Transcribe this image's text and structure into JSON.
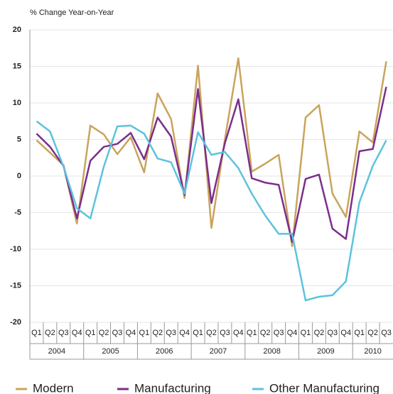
{
  "chart_data": {
    "type": "line",
    "y_label": "% Change Year-on-Year",
    "groups": [
      {
        "name": "2004",
        "categories": [
          "Q1",
          "Q2",
          "Q3",
          "Q4"
        ]
      },
      {
        "name": "2005",
        "categories": [
          "Q1",
          "Q2",
          "Q3",
          "Q4"
        ]
      },
      {
        "name": "2006",
        "categories": [
          "Q1",
          "Q2",
          "Q3",
          "Q4"
        ]
      },
      {
        "name": "2007",
        "categories": [
          "Q1",
          "Q2",
          "Q3",
          "Q4"
        ]
      },
      {
        "name": "2008",
        "categories": [
          "Q1",
          "Q2",
          "Q3",
          "Q4"
        ]
      },
      {
        "name": "2009",
        "categories": [
          "Q1",
          "Q2",
          "Q3",
          "Q4"
        ]
      },
      {
        "name": "2010",
        "categories": [
          "Q1",
          "Q2",
          "Q3"
        ]
      }
    ],
    "series": [
      {
        "name": "Modern",
        "color": "#c9a45c",
        "values": [
          4.9,
          3.2,
          1.5,
          -6.5,
          6.9,
          5.7,
          3.0,
          5.3,
          0.5,
          11.3,
          7.8,
          -3.0,
          15.1,
          -7.1,
          5.0,
          16.1,
          0.6,
          1.7,
          2.9,
          -9.6,
          8.0,
          9.7,
          -2.4,
          -5.6,
          6.1,
          4.6,
          15.7
        ]
      },
      {
        "name": "Manufacturing",
        "color": "#7b2e8c",
        "values": [
          5.8,
          4.0,
          1.4,
          -5.8,
          2.1,
          4.0,
          4.4,
          5.9,
          2.3,
          8.0,
          5.4,
          -2.6,
          11.9,
          -3.7,
          4.5,
          10.5,
          -0.3,
          -0.9,
          -1.2,
          -9.0,
          -0.4,
          0.2,
          -7.2,
          -8.6,
          3.4,
          3.7,
          12.2
        ]
      },
      {
        "name": "Other Manufacturing",
        "color": "#5bc3dd",
        "values": [
          7.5,
          6.1,
          1.3,
          -4.4,
          -5.8,
          1.3,
          6.8,
          6.9,
          5.8,
          2.4,
          1.9,
          -2.4,
          6.0,
          2.9,
          3.3,
          1.1,
          -2.4,
          -5.4,
          -7.9,
          -7.9,
          -17.0,
          -16.5,
          -16.3,
          -14.4,
          -3.6,
          1.4,
          4.9
        ]
      }
    ],
    "ylim": [
      -20,
      20
    ],
    "yticks": [
      -20,
      -15,
      -10,
      -5,
      0,
      5,
      10,
      15,
      20
    ],
    "grid": true
  }
}
